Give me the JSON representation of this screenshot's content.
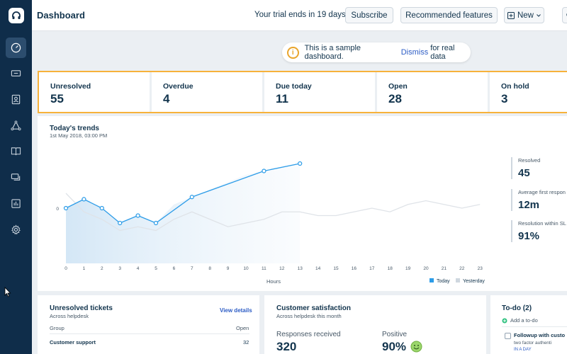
{
  "header": {
    "title": "Dashboard",
    "trial_text": "Your trial ends in 19 days",
    "subscribe_label": "Subscribe",
    "recommended_label": "Recommended features",
    "new_label": "New"
  },
  "sidebar": {
    "items": [
      {
        "icon": "dashboard-icon"
      },
      {
        "icon": "ticket-icon"
      },
      {
        "icon": "contacts-icon"
      },
      {
        "icon": "social-icon"
      },
      {
        "icon": "solutions-book-icon"
      },
      {
        "icon": "forums-chat-icon"
      },
      {
        "icon": "reports-icon"
      },
      {
        "icon": "admin-gear-icon"
      }
    ]
  },
  "banner": {
    "text_before": "This is a sample dashboard.",
    "dismiss": "Dismiss",
    "text_after": "for real data"
  },
  "stats": [
    {
      "label": "Unresolved",
      "value": "55"
    },
    {
      "label": "Overdue",
      "value": "4"
    },
    {
      "label": "Due today",
      "value": "11"
    },
    {
      "label": "Open",
      "value": "28"
    },
    {
      "label": "On hold",
      "value": "3"
    }
  ],
  "trends": {
    "title": "Today's trends",
    "subtitle": "1st May 2018, 03:00 PM",
    "side_stats": [
      {
        "label": "Resolved",
        "value": "45"
      },
      {
        "label": "Average first respon",
        "value": "12m"
      },
      {
        "label": "Resolution within SL",
        "value": "91%"
      }
    ]
  },
  "chart_data": {
    "type": "line",
    "x": [
      0,
      1,
      2,
      3,
      4,
      5,
      6,
      7,
      8,
      9,
      10,
      11,
      12,
      13,
      14,
      15,
      16,
      17,
      18,
      19,
      20,
      21,
      22,
      23
    ],
    "xlabel": "Hours",
    "ylabel": "",
    "y_tick_labels": [
      "0"
    ],
    "series": [
      {
        "name": "Today",
        "color": "#2c9ce8",
        "x": [
          0,
          1,
          2,
          3,
          4,
          5,
          6,
          7,
          8,
          9,
          10,
          11,
          12,
          13
        ],
        "values": [
          0,
          12,
          0,
          -20,
          -10,
          -20,
          5,
          15,
          25,
          35,
          45,
          50,
          55,
          60
        ],
        "markers": [
          0,
          1,
          2,
          3,
          4,
          5,
          7,
          11,
          13
        ]
      },
      {
        "name": "Yesterday",
        "color": "#dfe3e8",
        "x": [
          0,
          1,
          2,
          3,
          4,
          5,
          6,
          7,
          8,
          9,
          10,
          11,
          12,
          13,
          14,
          15,
          16,
          17,
          18,
          19,
          20,
          21,
          22,
          23
        ],
        "values": [
          20,
          -5,
          -15,
          -30,
          -25,
          -30,
          -15,
          -5,
          -15,
          -25,
          -20,
          -15,
          -5,
          -5,
          -10,
          -10,
          -5,
          0,
          -5,
          5,
          10,
          5,
          0,
          5
        ]
      }
    ],
    "legend": [
      "Today",
      "Yesterday"
    ],
    "legend_position": "bottom-right"
  },
  "unresolved": {
    "title": "Unresolved tickets",
    "sub": "Across helpdesk",
    "link": "View details",
    "col_group": "Group",
    "col_open": "Open",
    "rows": [
      {
        "group": "Customer support",
        "open": "32"
      }
    ]
  },
  "satisfaction": {
    "title": "Customer satisfaction",
    "sub": "Across helpdesk this month",
    "responses_label": "Responses received",
    "responses_value": "320",
    "positive_label": "Positive",
    "positive_value": "90%"
  },
  "todo": {
    "title": "To-do (2)",
    "add": "Add a to-do",
    "item_title": "Followup with custo",
    "item_sub": "two factor authenti",
    "item_due": "IN A DAY"
  }
}
